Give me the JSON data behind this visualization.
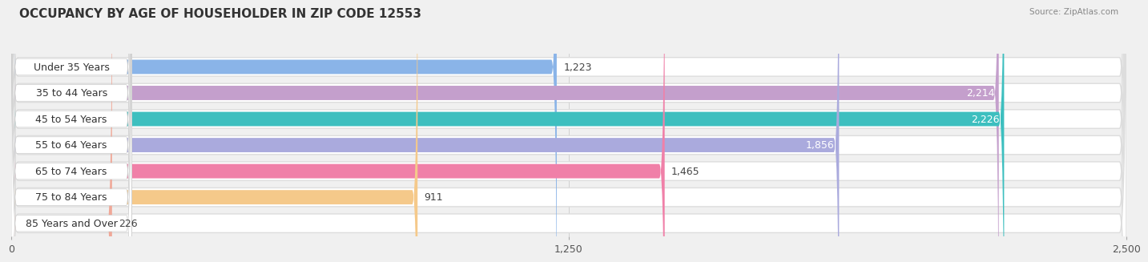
{
  "title": "OCCUPANCY BY AGE OF HOUSEHOLDER IN ZIP CODE 12553",
  "source": "Source: ZipAtlas.com",
  "categories": [
    "Under 35 Years",
    "35 to 44 Years",
    "45 to 54 Years",
    "55 to 64 Years",
    "65 to 74 Years",
    "75 to 84 Years",
    "85 Years and Over"
  ],
  "values": [
    1223,
    2214,
    2226,
    1856,
    1465,
    911,
    226
  ],
  "bar_colors": [
    "#8ab4e8",
    "#c49fcc",
    "#3dbfbf",
    "#aaaadd",
    "#f080a8",
    "#f5c98a",
    "#f0a898"
  ],
  "xlim": [
    0,
    2500
  ],
  "xticks": [
    0,
    1250,
    2500
  ],
  "xtick_labels": [
    "0",
    "1,250",
    "2,500"
  ],
  "title_fontsize": 11,
  "label_fontsize": 9,
  "value_fontsize": 9,
  "background_color": "#f0f0f0",
  "bar_bg_color": "#ffffff",
  "value_inside_threshold": 1700,
  "value_inside_color": "white",
  "value_outside_color": "#444444"
}
